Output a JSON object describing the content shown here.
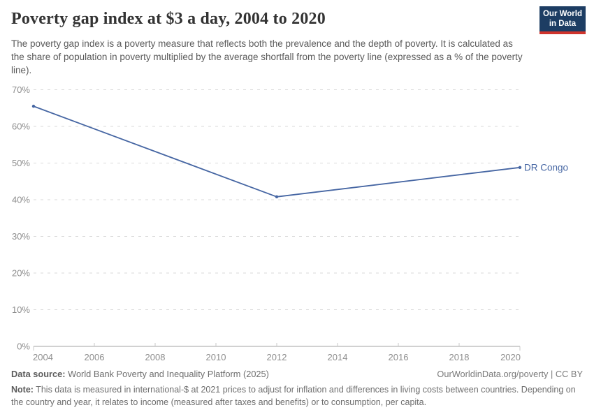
{
  "header": {
    "title": "Poverty gap index at $3 a day, 2004 to 2020",
    "subtitle": "The poverty gap index is a poverty measure that reflects both the prevalence and the depth of poverty. It is calculated as the share of population in poverty multiplied by the average shortfall from the poverty line (expressed as a % of the poverty line).",
    "logo": {
      "line1": "Our World",
      "line2": "in Data"
    }
  },
  "chart_data": {
    "type": "line",
    "title": "Poverty gap index at $3 a day, 2004 to 2020",
    "xlabel": "",
    "ylabel": "",
    "xlim": [
      2004,
      2020
    ],
    "ylim": [
      0,
      70
    ],
    "grid": "horizontal-dashed",
    "legend_position": "end-of-line-label",
    "colors": {
      "line": "#4666a3",
      "gridline": "#d9d9d9",
      "axis_text": "#8e8e8e",
      "baseline": "#a3a3a3",
      "tick": "#c9c9c9"
    },
    "xticks": [
      {
        "v": 2004,
        "label": "2004"
      },
      {
        "v": 2006,
        "label": "2006"
      },
      {
        "v": 2008,
        "label": "2008"
      },
      {
        "v": 2010,
        "label": "2010"
      },
      {
        "v": 2012,
        "label": "2012"
      },
      {
        "v": 2014,
        "label": "2014"
      },
      {
        "v": 2016,
        "label": "2016"
      },
      {
        "v": 2018,
        "label": "2018"
      },
      {
        "v": 2020,
        "label": "2020"
      }
    ],
    "yticks": [
      {
        "v": 0,
        "label": "0%"
      },
      {
        "v": 10,
        "label": "10%"
      },
      {
        "v": 20,
        "label": "20%"
      },
      {
        "v": 30,
        "label": "30%"
      },
      {
        "v": 40,
        "label": "40%"
      },
      {
        "v": 50,
        "label": "50%"
      },
      {
        "v": 60,
        "label": "60%"
      },
      {
        "v": 70,
        "label": "70%"
      }
    ],
    "series": [
      {
        "name": "DR Congo",
        "color": "#4666a3",
        "points": [
          {
            "x": 2004,
            "y": 65.5
          },
          {
            "x": 2012,
            "y": 40.8
          },
          {
            "x": 2020,
            "y": 48.8
          }
        ]
      }
    ]
  },
  "footer": {
    "data_source_label": "Data source:",
    "data_source_text": "World Bank Poverty and Inequality Platform (2025)",
    "attribution": "OurWorldinData.org/poverty | CC BY",
    "note_label": "Note:",
    "note_text": "This data is measured in international-$ at 2021 prices to adjust for inflation and differences in living costs between countries. Depending on the country and year, it relates to income (measured after taxes and benefits) or to consumption, per capita."
  }
}
